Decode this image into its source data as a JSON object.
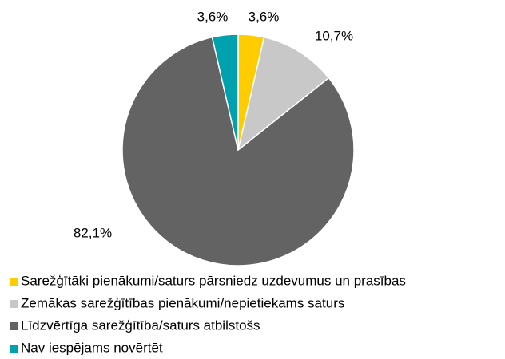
{
  "chart_data": {
    "type": "pie",
    "categories": [
      "Sarežģītāki pienākumi/saturs pārsniedz uzdevumus un prasības",
      "Zemākas sarežģītības pienākumi/nepietiekams saturs",
      "Līdzvērtīga sarežģītība/saturs atbilstošs",
      "Nav iespējams novērtēt"
    ],
    "values": [
      3.6,
      10.7,
      82.1,
      3.6
    ],
    "value_labels": [
      "3,6%",
      "10,7%",
      "82,1%",
      "3,6%"
    ],
    "colors": [
      "#ffcc00",
      "#c8c8c8",
      "#636363",
      "#00a1ae"
    ],
    "legend": "bottom"
  }
}
